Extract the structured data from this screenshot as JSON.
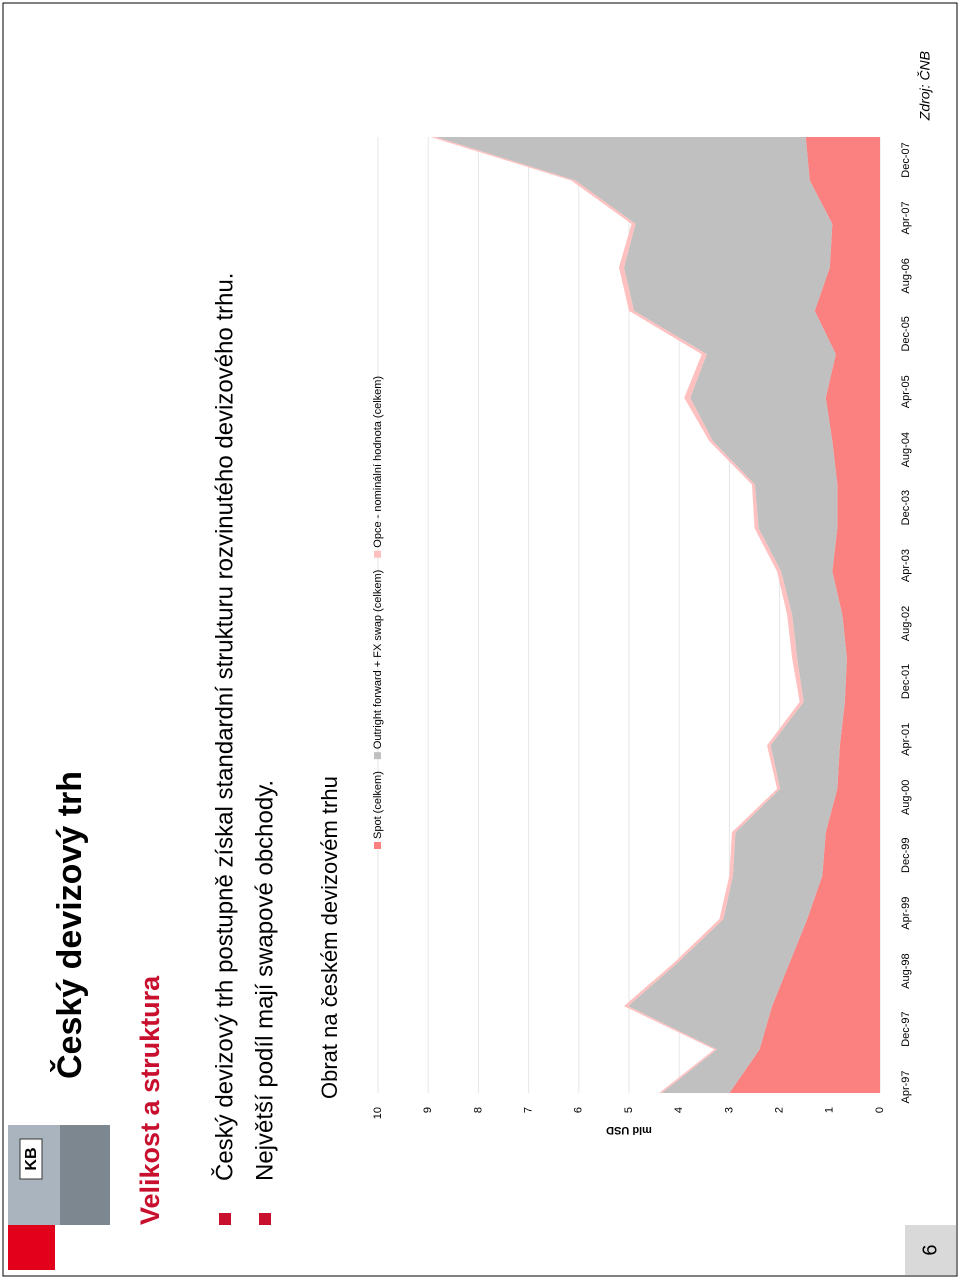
{
  "header": {
    "title": "Český devizový trh",
    "subtitle": "Velikost a struktura"
  },
  "bullets": [
    "Český devizový trh postupně získal standardní strukturu rozvinutého devizového trhu.",
    "Největší podíl mají swapové obchody."
  ],
  "chart_data": {
    "type": "area",
    "stacked": true,
    "title": "Obrat na českém devizovém trhu",
    "y_label": "mld USD",
    "x": [
      "Apr-97",
      "Oct-97",
      "Apr-98",
      "Oct-98",
      "Apr-99",
      "Oct-99",
      "Apr-00",
      "Oct-00",
      "Apr-01",
      "Oct-01",
      "Apr-02",
      "Oct-02",
      "Apr-03",
      "Oct-03",
      "Apr-04",
      "Oct-04",
      "Apr-05",
      "Oct-05",
      "Apr-06",
      "Oct-06",
      "Apr-07",
      "Oct-07",
      "Apr-08"
    ],
    "xlim": [
      "Apr-97",
      "Apr-08"
    ],
    "xticks": [
      "Apr-97",
      "Dec-97",
      "Aug-98",
      "Apr-99",
      "Dec-99",
      "Aug-00",
      "Apr-01",
      "Dec-01",
      "Aug-02",
      "Apr-03",
      "Dec-03",
      "Aug-04",
      "Apr-05",
      "Dec-05",
      "Aug-06",
      "Apr-07",
      "Dec-07"
    ],
    "ylim": [
      0,
      10
    ],
    "yticks": [
      0,
      1,
      2,
      3,
      4,
      5,
      6,
      7,
      8,
      9,
      10
    ],
    "grid": true,
    "series": [
      {
        "name": "Spot (celkem)",
        "color": "#fb8080",
        "values": [
          3.0,
          2.4,
          2.15,
          1.8,
          1.45,
          1.15,
          1.08,
          0.85,
          0.8,
          0.7,
          0.66,
          0.75,
          0.95,
          0.85,
          0.85,
          0.95,
          1.08,
          0.88,
          1.3,
          1.0,
          0.95,
          1.4,
          1.48
        ]
      },
      {
        "name": "Outright forward + FX swap (celkem)",
        "color": "#c0c0c0",
        "values": [
          1.35,
          0.85,
          2.87,
          2.23,
          1.67,
          1.78,
          1.8,
          1.14,
          1.38,
          0.82,
          0.99,
          1.0,
          1.02,
          1.57,
          1.64,
          2.38,
          2.7,
          2.57,
          3.6,
          4.1,
          3.92,
          4.67,
          7.37
        ]
      },
      {
        "name": "Opce - nominální hodnota (celkem)",
        "color": "#ffc0c0",
        "values": [
          0.05,
          0.05,
          0.08,
          0.07,
          0.08,
          0.07,
          0.07,
          0.06,
          0.07,
          0.08,
          0.1,
          0.1,
          0.08,
          0.08,
          0.06,
          0.07,
          0.12,
          0.1,
          0.1,
          0.1,
          0.08,
          0.08,
          0.1
        ]
      }
    ]
  },
  "source": "Zdroj: ČNB",
  "page_number": "6"
}
